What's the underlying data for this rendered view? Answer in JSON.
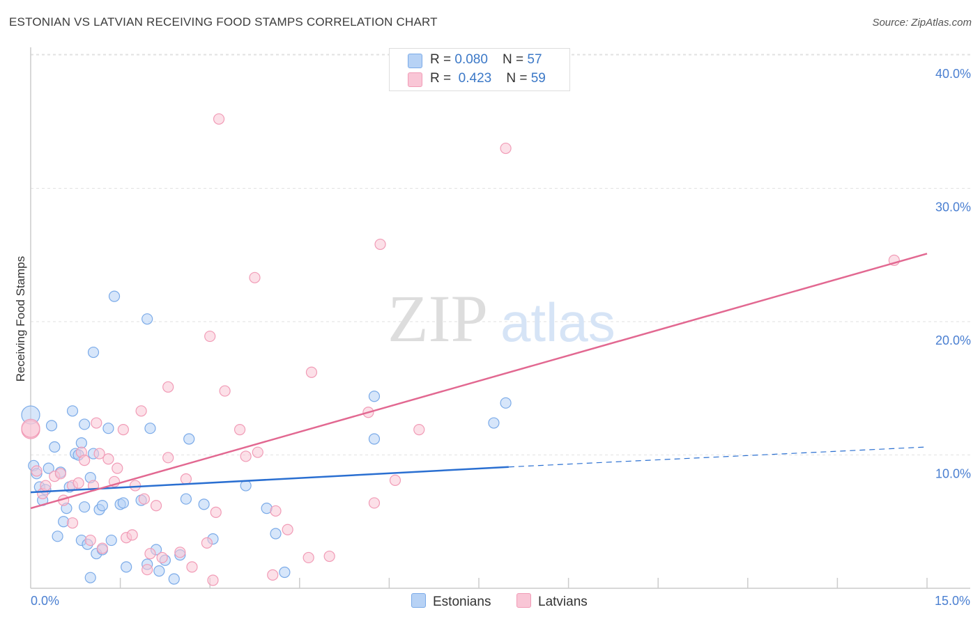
{
  "title": "ESTONIAN VS LATVIAN RECEIVING FOOD STAMPS CORRELATION CHART",
  "source": "Source: ZipAtlas.com",
  "watermark": {
    "zip": "ZIP",
    "atlas": "atlas"
  },
  "colors": {
    "estonian": "#7aaae8",
    "estonian_fill": "#b7d2f5",
    "estonian_line": "#2a6fd1",
    "latvian": "#f19bb6",
    "latvian_fill": "#f9c6d6",
    "latvian_line": "#e26891",
    "tick": "#4a7fd1"
  },
  "legend": {
    "rows": [
      {
        "r_label": "R = ",
        "r_value": "0.080",
        "n_label": "N = ",
        "n_value": "57"
      },
      {
        "r_label": "R = ",
        "r_value": "0.423",
        "n_label": "N = ",
        "n_value": "59"
      }
    ]
  },
  "bottom_legend": {
    "estonians": "Estonians",
    "latvians": "Latvians"
  },
  "chart_data": {
    "type": "scatter",
    "title": "ESTONIAN VS LATVIAN RECEIVING FOOD STAMPS CORRELATION CHART",
    "xlabel": "",
    "ylabel": "Receiving Food Stamps",
    "xlim": [
      0,
      15
    ],
    "ylim": [
      0,
      40
    ],
    "x_tick_labels": [
      "0.0%",
      "15.0%"
    ],
    "y_ticks": [
      {
        "value": 10,
        "label": "10.0%"
      },
      {
        "value": 20,
        "label": "20.0%"
      },
      {
        "value": 30,
        "label": "30.0%"
      },
      {
        "value": 40,
        "label": "40.0%"
      }
    ],
    "series": [
      {
        "name": "Estonians",
        "r": 0.08,
        "n": 57,
        "trend": {
          "x0": 0,
          "y0": 7.2,
          "x1": 8.0,
          "y1": 9.1,
          "dash_x1": 15.0,
          "dash_y1": 10.6
        },
        "points": [
          [
            0.0,
            13.0
          ],
          [
            0.05,
            9.2
          ],
          [
            0.1,
            8.6
          ],
          [
            0.15,
            7.6
          ],
          [
            0.2,
            6.6
          ],
          [
            0.25,
            7.4
          ],
          [
            0.3,
            9.0
          ],
          [
            0.35,
            12.2
          ],
          [
            0.4,
            10.6
          ],
          [
            0.45,
            3.9
          ],
          [
            0.5,
            8.7
          ],
          [
            0.55,
            5.0
          ],
          [
            0.6,
            6.0
          ],
          [
            0.65,
            7.6
          ],
          [
            0.7,
            13.3
          ],
          [
            0.75,
            10.1
          ],
          [
            0.8,
            10.0
          ],
          [
            0.85,
            3.6
          ],
          [
            0.9,
            6.1
          ],
          [
            0.85,
            10.9
          ],
          [
            0.9,
            12.3
          ],
          [
            0.95,
            3.3
          ],
          [
            1.0,
            8.3
          ],
          [
            1.0,
            0.8
          ],
          [
            1.05,
            10.1
          ],
          [
            1.05,
            17.7
          ],
          [
            1.1,
            2.6
          ],
          [
            1.15,
            5.9
          ],
          [
            1.2,
            6.2
          ],
          [
            1.2,
            2.9
          ],
          [
            1.3,
            12.0
          ],
          [
            1.35,
            3.6
          ],
          [
            1.4,
            21.9
          ],
          [
            1.5,
            6.3
          ],
          [
            1.55,
            6.4
          ],
          [
            1.6,
            1.6
          ],
          [
            1.85,
            6.6
          ],
          [
            1.95,
            20.2
          ],
          [
            1.95,
            1.8
          ],
          [
            2.0,
            12.0
          ],
          [
            2.1,
            2.9
          ],
          [
            2.15,
            1.3
          ],
          [
            2.25,
            2.1
          ],
          [
            2.4,
            0.7
          ],
          [
            2.5,
            2.5
          ],
          [
            2.6,
            6.7
          ],
          [
            2.65,
            11.2
          ],
          [
            2.9,
            6.3
          ],
          [
            3.05,
            3.7
          ],
          [
            3.6,
            7.7
          ],
          [
            3.95,
            6.0
          ],
          [
            4.1,
            4.1
          ],
          [
            4.25,
            1.2
          ],
          [
            5.75,
            11.2
          ],
          [
            5.75,
            14.4
          ],
          [
            7.75,
            12.4
          ],
          [
            7.95,
            13.9
          ]
        ]
      },
      {
        "name": "Latvians",
        "r": 0.423,
        "n": 59,
        "trend": {
          "x0": 0,
          "y0": 6.0,
          "x1": 15.0,
          "y1": 25.1
        },
        "points": [
          [
            0.0,
            11.9
          ],
          [
            0.1,
            8.8
          ],
          [
            0.2,
            7.1
          ],
          [
            0.25,
            7.7
          ],
          [
            0.4,
            8.4
          ],
          [
            0.5,
            8.6
          ],
          [
            0.55,
            6.6
          ],
          [
            0.7,
            7.7
          ],
          [
            0.7,
            4.9
          ],
          [
            0.8,
            7.9
          ],
          [
            0.85,
            10.2
          ],
          [
            0.9,
            9.6
          ],
          [
            1.0,
            3.6
          ],
          [
            1.05,
            7.7
          ],
          [
            1.1,
            12.4
          ],
          [
            1.15,
            10.1
          ],
          [
            1.2,
            3.0
          ],
          [
            1.3,
            9.7
          ],
          [
            1.4,
            8.0
          ],
          [
            1.45,
            9.0
          ],
          [
            1.55,
            11.9
          ],
          [
            1.6,
            3.8
          ],
          [
            1.7,
            4.0
          ],
          [
            1.75,
            7.7
          ],
          [
            1.85,
            13.3
          ],
          [
            1.9,
            6.7
          ],
          [
            1.95,
            1.4
          ],
          [
            2.0,
            2.6
          ],
          [
            2.1,
            6.2
          ],
          [
            2.2,
            2.3
          ],
          [
            2.3,
            9.8
          ],
          [
            2.3,
            15.1
          ],
          [
            2.5,
            2.7
          ],
          [
            2.6,
            8.2
          ],
          [
            2.7,
            1.6
          ],
          [
            2.95,
            3.4
          ],
          [
            3.0,
            18.9
          ],
          [
            3.05,
            0.6
          ],
          [
            3.1,
            5.7
          ],
          [
            3.15,
            35.2
          ],
          [
            3.25,
            14.8
          ],
          [
            3.5,
            11.9
          ],
          [
            3.6,
            9.9
          ],
          [
            3.75,
            23.3
          ],
          [
            3.8,
            10.2
          ],
          [
            4.05,
            1.0
          ],
          [
            4.1,
            5.8
          ],
          [
            4.3,
            4.4
          ],
          [
            4.65,
            2.3
          ],
          [
            4.7,
            16.2
          ],
          [
            5.0,
            2.4
          ],
          [
            5.65,
            13.2
          ],
          [
            5.75,
            6.4
          ],
          [
            5.85,
            25.8
          ],
          [
            6.1,
            8.1
          ],
          [
            6.5,
            11.9
          ],
          [
            7.95,
            33.0
          ],
          [
            14.45,
            24.6
          ],
          [
            0.0,
            12.0
          ]
        ]
      }
    ]
  }
}
